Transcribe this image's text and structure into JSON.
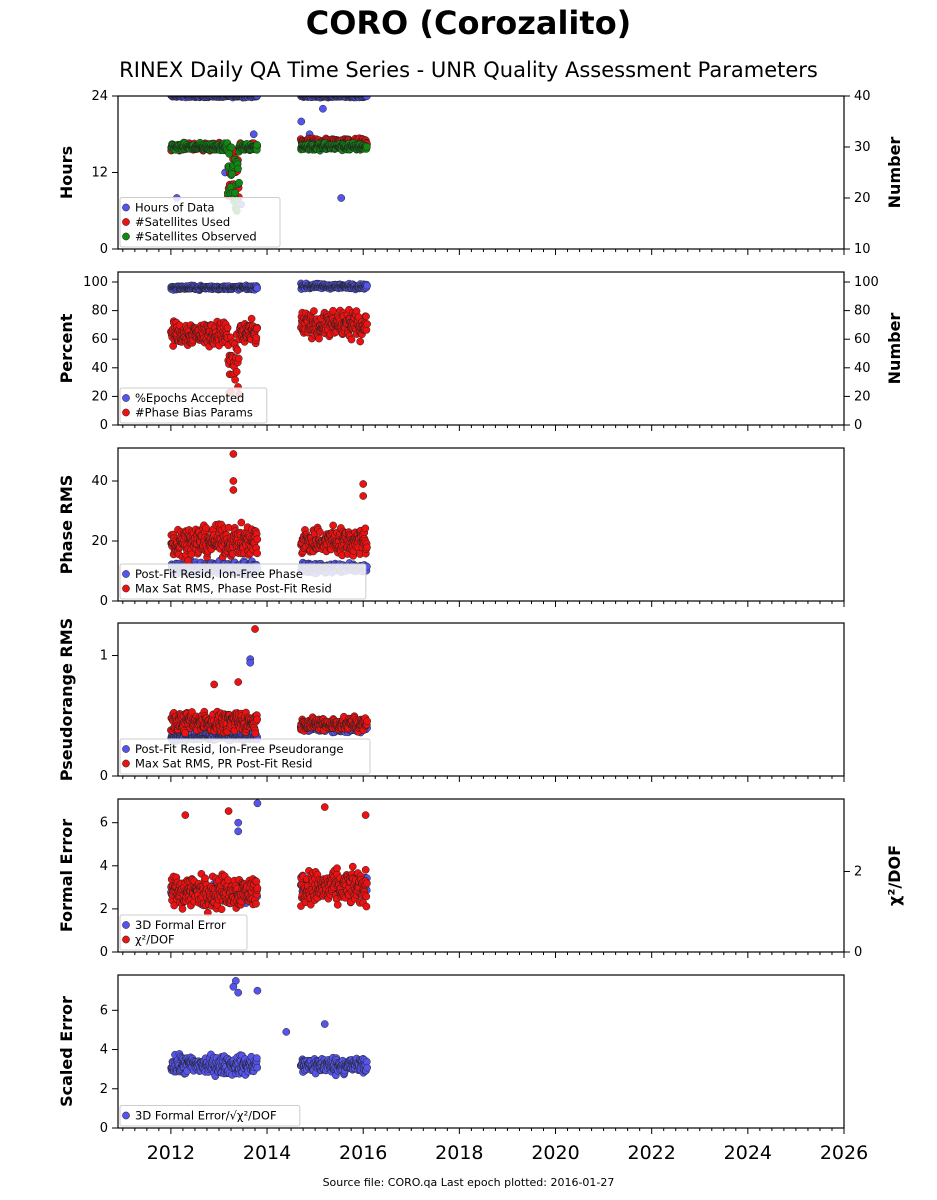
{
  "title": "CORO (Corozalito)",
  "subtitle": "RINEX Daily QA Time Series - UNR Quality Assessment Parameters",
  "footer": "Source file: CORO.qa Last epoch plotted: 2016-01-27",
  "x_axis": {
    "min": 2010.9,
    "max": 2026.0,
    "ticks": [
      2012,
      2014,
      2016,
      2018,
      2020,
      2022,
      2024,
      2026
    ]
  },
  "colors": {
    "blue": "#5555ee",
    "red": "#ee1111",
    "green": "#118811"
  },
  "chart_data": [
    {
      "type": "scatter",
      "ylabel": "Hours",
      "ylabel_right": "Number",
      "ylim": [
        0,
        24
      ],
      "yticks": [
        0,
        12,
        24
      ],
      "ylim_right": [
        10,
        40
      ],
      "yticks_right": [
        10,
        20,
        30,
        40
      ],
      "legend": "bottom-left",
      "series": [
        {
          "name": "Hours of Data",
          "color": "blue",
          "axis": "left",
          "segments": [
            {
              "x": [
                2012.0,
                2013.8
              ],
              "base": 24,
              "spread": 0.3,
              "sparse_below": [
                18,
                12,
                8,
                7
              ]
            },
            {
              "x": [
                2014.7,
                2016.08
              ],
              "base": 24,
              "spread": 0.3,
              "sparse_below": [
                22,
                20,
                18,
                8
              ]
            }
          ]
        },
        {
          "name": "#Satellites Used",
          "color": "red",
          "axis": "right",
          "segments": [
            {
              "x": [
                2012.0,
                2013.8
              ],
              "base": 30,
              "spread": 1.0,
              "dip": {
                "x": 2013.3,
                "y": 20
              }
            },
            {
              "x": [
                2014.7,
                2016.08
              ],
              "base": 31,
              "spread": 1.0
            }
          ]
        },
        {
          "name": "#Satellites Observed",
          "color": "green",
          "axis": "right",
          "segments": [
            {
              "x": [
                2012.0,
                2013.8
              ],
              "base": 30,
              "spread": 1.0,
              "dip": {
                "x": 2013.3,
                "y": 17
              }
            },
            {
              "x": [
                2014.7,
                2016.08
              ],
              "base": 30,
              "spread": 1.0
            }
          ]
        }
      ]
    },
    {
      "type": "scatter",
      "ylabel": "Percent",
      "ylabel_right": "Number",
      "ylim": [
        0,
        107
      ],
      "yticks": [
        0,
        20,
        40,
        60,
        80,
        100
      ],
      "ylim_right": [
        0,
        107
      ],
      "yticks_right": [
        0,
        20,
        40,
        60,
        80,
        100
      ],
      "legend": "bottom-left",
      "series": [
        {
          "name": "%Epochs Accepted",
          "color": "blue",
          "axis": "left",
          "segments": [
            {
              "x": [
                2012.0,
                2013.8
              ],
              "base": 96,
              "spread": 2
            },
            {
              "x": [
                2014.7,
                2016.08
              ],
              "base": 97,
              "spread": 2.5
            }
          ]
        },
        {
          "name": "#Phase Bias Params",
          "color": "red",
          "axis": "right",
          "segments": [
            {
              "x": [
                2012.0,
                2013.8
              ],
              "base": 64,
              "spread": 12,
              "dip": {
                "x": 2013.3,
                "y": 20
              }
            },
            {
              "x": [
                2014.7,
                2016.08
              ],
              "base": 70,
              "spread": 13
            }
          ]
        }
      ]
    },
    {
      "type": "scatter",
      "ylabel": "Phase RMS",
      "ylim": [
        0,
        51
      ],
      "yticks": [
        0,
        20,
        40
      ],
      "legend": "bottom-left",
      "series": [
        {
          "name": "Post-Fit Resid, Ion-Free Phase",
          "color": "blue",
          "axis": "left",
          "segments": [
            {
              "x": [
                2012.0,
                2013.8
              ],
              "base": 11,
              "spread": 3
            },
            {
              "x": [
                2014.7,
                2016.08
              ],
              "base": 11,
              "spread": 2.5
            }
          ]
        },
        {
          "name": "Max Sat RMS, Phase Post-Fit Resid",
          "color": "red",
          "axis": "left",
          "segments": [
            {
              "x": [
                2012.0,
                2013.8
              ],
              "base": 20,
              "spread": 7,
              "outliers": [
                [
                  2013.3,
                  49
                ],
                [
                  2013.3,
                  40
                ],
                [
                  2013.3,
                  37
                ]
              ]
            },
            {
              "x": [
                2014.7,
                2016.08
              ],
              "base": 20,
              "spread": 7,
              "outliers": [
                [
                  2016.0,
                  39
                ],
                [
                  2016.0,
                  35
                ]
              ]
            }
          ]
        }
      ]
    },
    {
      "type": "scatter",
      "ylabel": "Pseudorange RMS",
      "ylim": [
        0,
        1.27
      ],
      "yticks": [
        0,
        1
      ],
      "legend": "bottom-left",
      "series": [
        {
          "name": "Post-Fit Resid, Ion-Free Pseudorange",
          "color": "blue",
          "axis": "left",
          "segments": [
            {
              "x": [
                2012.0,
                2013.8
              ],
              "base": 0.33,
              "spread": 0.05,
              "outliers": [
                [
                  2013.65,
                  0.97
                ],
                [
                  2013.65,
                  0.94
                ]
              ]
            },
            {
              "x": [
                2014.7,
                2016.08
              ],
              "base": 0.4,
              "spread": 0.05
            }
          ]
        },
        {
          "name": "Max Sat RMS, PR Post-Fit Resid",
          "color": "red",
          "axis": "left",
          "segments": [
            {
              "x": [
                2012.0,
                2013.8
              ],
              "base": 0.45,
              "spread": 0.12,
              "outliers": [
                [
                  2013.75,
                  1.22
                ],
                [
                  2013.4,
                  0.78
                ],
                [
                  2012.9,
                  0.76
                ]
              ]
            },
            {
              "x": [
                2014.7,
                2016.08
              ],
              "base": 0.43,
              "spread": 0.08
            }
          ]
        }
      ]
    },
    {
      "type": "scatter",
      "ylabel": "Formal Error",
      "ylabel_right": "χ²/DOF",
      "ylim": [
        0,
        7.1
      ],
      "yticks": [
        0,
        2,
        4,
        6
      ],
      "ylim_right": [
        0,
        3.8
      ],
      "yticks_right": [
        0,
        2
      ],
      "legend": "bottom-left",
      "series": [
        {
          "name": "3D Formal Error",
          "color": "blue",
          "axis": "left",
          "segments": [
            {
              "x": [
                2012.0,
                2013.8
              ],
              "base": 2.8,
              "spread": 0.6,
              "outliers": [
                [
                  2013.4,
                  5.6
                ],
                [
                  2013.4,
                  6.0
                ],
                [
                  2013.8,
                  6.9
                ]
              ]
            },
            {
              "x": [
                2014.7,
                2016.08
              ],
              "base": 3.0,
              "spread": 0.6
            }
          ]
        },
        {
          "name": "χ²/DOF",
          "color": "red",
          "axis": "right",
          "segments": [
            {
              "x": [
                2012.0,
                2013.8
              ],
              "base": 1.5,
              "spread": 0.6,
              "outliers": [
                [
                  2013.2,
                  3.5
                ],
                [
                  2012.3,
                  3.4
                ]
              ]
            },
            {
              "x": [
                2014.7,
                2016.08
              ],
              "base": 1.6,
              "spread": 0.6,
              "outliers": [
                [
                  2015.2,
                  3.6
                ],
                [
                  2016.05,
                  3.4
                ]
              ]
            }
          ]
        }
      ]
    },
    {
      "type": "scatter",
      "ylabel": "Scaled Error",
      "ylim": [
        0,
        7.8
      ],
      "yticks": [
        0,
        2,
        4,
        6
      ],
      "legend": "bottom-left",
      "series": [
        {
          "name": "3D Formal Error/√χ²/DOF",
          "color": "blue",
          "axis": "left",
          "segments": [
            {
              "x": [
                2012.0,
                2013.8
              ],
              "base": 3.2,
              "spread": 0.7,
              "outliers": [
                [
                  2013.35,
                  7.5
                ],
                [
                  2013.3,
                  7.2
                ],
                [
                  2013.8,
                  7.0
                ],
                [
                  2013.4,
                  6.9
                ]
              ]
            },
            {
              "x": [
                2014.7,
                2016.08
              ],
              "base": 3.2,
              "spread": 0.6,
              "outliers": [
                [
                  2014.4,
                  4.9
                ],
                [
                  2015.2,
                  5.3
                ]
              ]
            }
          ]
        }
      ]
    }
  ]
}
